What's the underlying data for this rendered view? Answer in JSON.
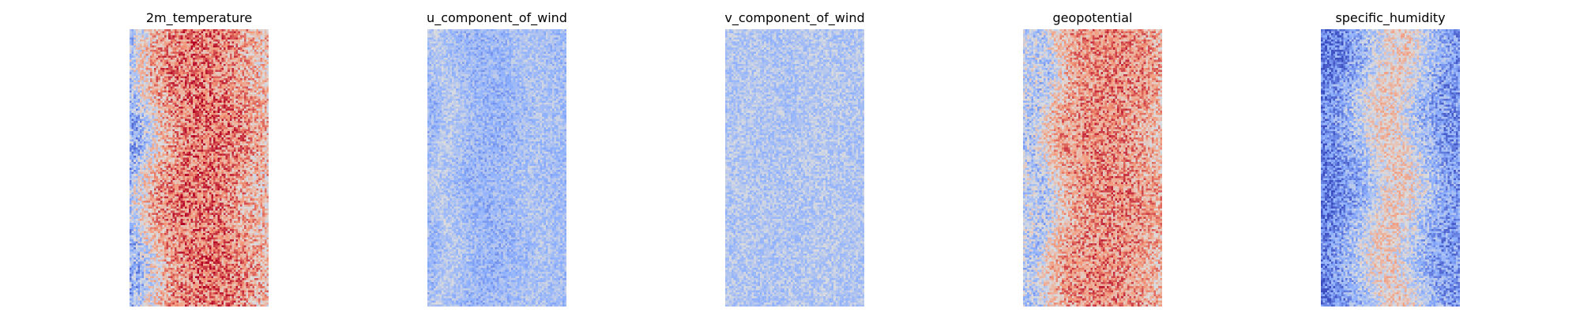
{
  "figure": {
    "panels": [
      {
        "title": "2m_temperature"
      },
      {
        "title": "u_component_of_wind"
      },
      {
        "title": "v_component_of_wind"
      },
      {
        "title": "geopotential"
      },
      {
        "title": "specific_humidity"
      }
    ]
  },
  "chart_data": [
    {
      "type": "heatmap",
      "title": "2m_temperature",
      "colormap": "coolwarm",
      "axes": "off",
      "grid": false,
      "legend": "none",
      "value_range": [
        0,
        1
      ],
      "column_profile": [
        0.28,
        0.5,
        0.68,
        0.76,
        0.8,
        0.8,
        0.78,
        0.74,
        0.67,
        0.62
      ],
      "noise": 0.22
    },
    {
      "type": "heatmap",
      "title": "u_component_of_wind",
      "colormap": "coolwarm",
      "axes": "off",
      "grid": false,
      "legend": "none",
      "value_range": [
        0,
        1
      ],
      "column_profile": [
        0.3,
        0.4,
        0.34,
        0.3,
        0.28,
        0.3,
        0.33,
        0.36,
        0.34,
        0.32
      ],
      "noise": 0.12
    },
    {
      "type": "heatmap",
      "title": "v_component_of_wind",
      "colormap": "coolwarm",
      "axes": "off",
      "grid": false,
      "legend": "none",
      "value_range": [
        0,
        1
      ],
      "column_profile": [
        0.36,
        0.38,
        0.37,
        0.36,
        0.36,
        0.37,
        0.38,
        0.38,
        0.37,
        0.36
      ],
      "noise": 0.12
    },
    {
      "type": "heatmap",
      "title": "geopotential",
      "colormap": "coolwarm",
      "axes": "off",
      "grid": false,
      "legend": "none",
      "value_range": [
        0,
        1
      ],
      "column_profile": [
        0.42,
        0.36,
        0.58,
        0.7,
        0.74,
        0.76,
        0.76,
        0.74,
        0.7,
        0.64
      ],
      "noise": 0.2
    },
    {
      "type": "heatmap",
      "title": "specific_humidity",
      "colormap": "coolwarm",
      "axes": "off",
      "grid": false,
      "legend": "none",
      "value_range": [
        0,
        1
      ],
      "column_profile": [
        0.12,
        0.18,
        0.28,
        0.4,
        0.55,
        0.58,
        0.45,
        0.32,
        0.22,
        0.2
      ],
      "noise": 0.18
    }
  ]
}
